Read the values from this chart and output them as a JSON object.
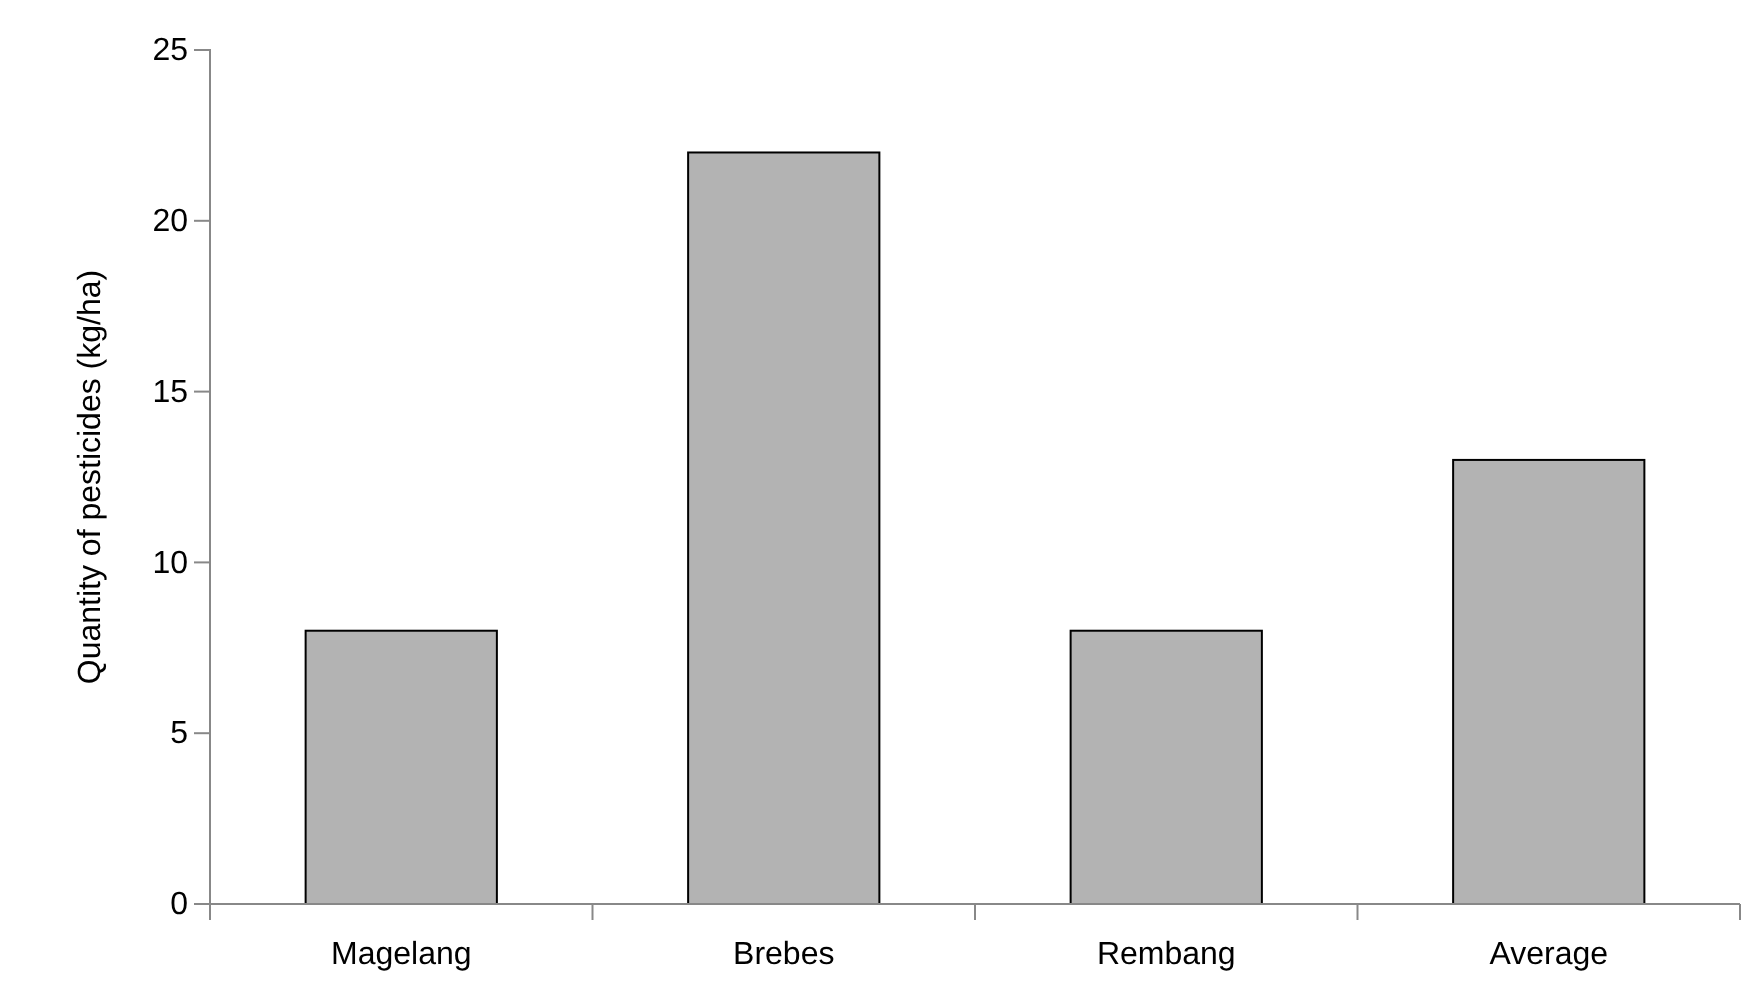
{
  "chart_data": {
    "type": "bar",
    "ylabel": "Quantity of pesticides (kg/ha)",
    "categories": [
      "Magelang",
      "Brebes",
      "Rembang",
      "Average"
    ],
    "values": [
      8,
      22,
      8,
      13
    ],
    "color": "#b3b3b3",
    "ylim": [
      0,
      25
    ],
    "yticks": [
      0,
      5,
      10,
      15,
      20,
      25
    ],
    "grid": false
  }
}
